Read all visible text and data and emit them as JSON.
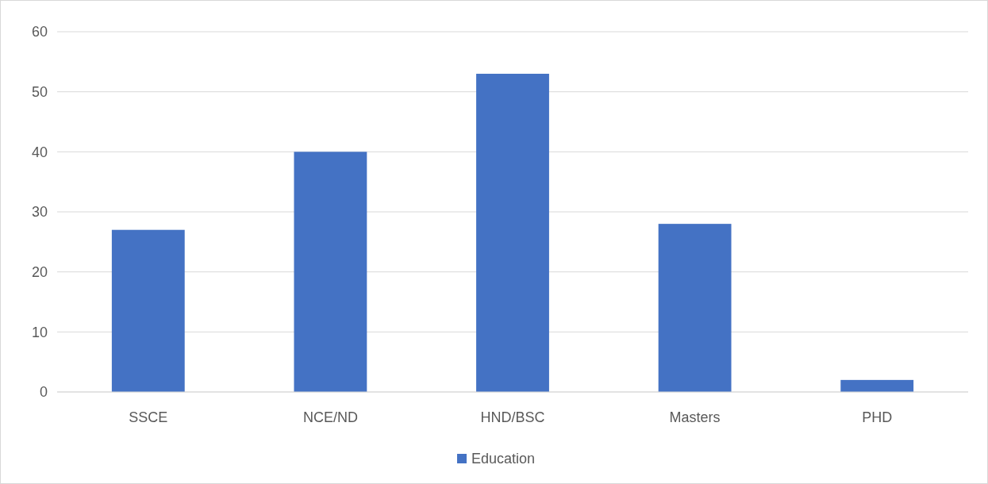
{
  "chart_data": {
    "type": "bar",
    "categories": [
      "SSCE",
      "NCE/ND",
      "HND/BSC",
      "Masters",
      "PHD"
    ],
    "series": [
      {
        "name": "Education",
        "color": "#4472c4",
        "values": [
          27,
          40,
          53,
          28,
          2
        ]
      }
    ],
    "ylim": [
      0,
      60
    ],
    "yticks": [
      0,
      10,
      20,
      30,
      40,
      50,
      60
    ],
    "grid": "y",
    "legend": "bottom"
  }
}
